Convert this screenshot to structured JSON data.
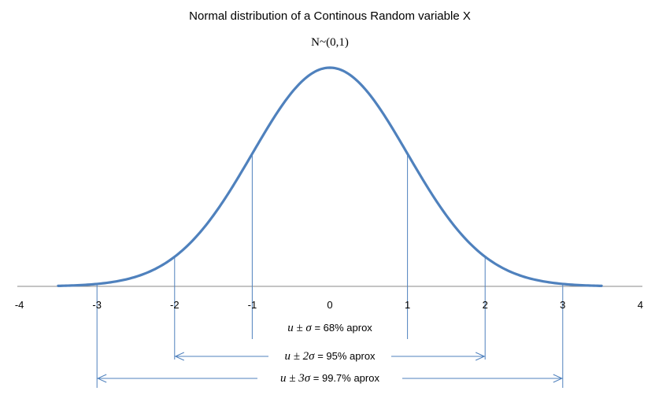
{
  "chart_data": {
    "type": "line",
    "title": "Normal distribution of a Continous Random variable X",
    "subtitle": "N~(0,1)",
    "xlim": [
      -4,
      4
    ],
    "x_ticks": [
      -4,
      -3,
      -2,
      -1,
      0,
      1,
      2,
      3,
      4
    ],
    "x_tick_labels": [
      "-4",
      "-3",
      "-2",
      "-1",
      "0",
      "1",
      "2",
      "3",
      "4"
    ],
    "grid": false,
    "curve_domain": [
      -3.5,
      3.5
    ],
    "mean": 0,
    "sd": 1,
    "curve_color": "#4F81BD",
    "guide_color": "#4F81BD",
    "annotations": [
      {
        "from": -1,
        "to": 1,
        "math": "u ± σ",
        "rest": " = 68% aprox",
        "arrows": false
      },
      {
        "from": -2,
        "to": 2,
        "math": "u ± 2σ",
        "rest": " = 95% aprox",
        "arrows": true
      },
      {
        "from": -3,
        "to": 3,
        "math": "u ± 3σ",
        "rest": " = 99.7% aprox",
        "arrows": true
      }
    ]
  }
}
